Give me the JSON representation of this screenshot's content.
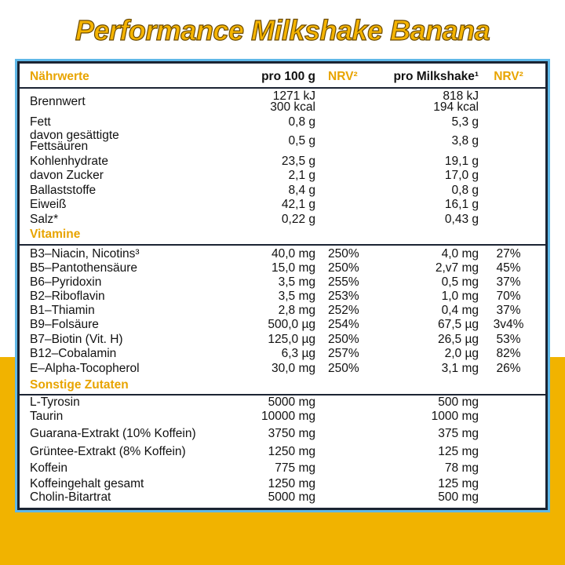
{
  "title": "Performance Milkshake Banana",
  "header": [
    "Nährwerte",
    "pro 100 g",
    "NRV²",
    "pro Milkshake¹",
    "NRV²"
  ],
  "sections": [
    {
      "rows": [
        {
          "label": "Brennwert",
          "per100": [
            "1271 kJ",
            "300 kcal"
          ],
          "perShake": [
            "818 kJ",
            "194 kcal"
          ]
        },
        {
          "label": "Fett",
          "per100": "0,8 g",
          "perShake": "5,3 g"
        },
        {
          "label": [
            "davon gesättigte",
            "Fettsäuren"
          ],
          "per100": "0,5 g",
          "perShake": "3,8 g"
        },
        {
          "label": "Kohlenhydrate",
          "per100": "23,5 g",
          "perShake": "19,1 g"
        },
        {
          "label": "davon Zucker",
          "per100": "2,1 g",
          "perShake": "17,0 g"
        },
        {
          "label": "Ballaststoffe",
          "per100": "8,4 g",
          "perShake": "0,8 g"
        },
        {
          "label": "Eiweiß",
          "per100": "42,1 g",
          "perShake": "16,1 g"
        },
        {
          "label": "Salz*",
          "per100": "0,22 g",
          "perShake": "0,43 g"
        }
      ]
    },
    {
      "title": "Vitamine",
      "rows": [
        {
          "label": "B3–Niacin, Nicotins³",
          "per100": "40,0 mg",
          "nrv100": "250%",
          "perShake": "4,0 mg",
          "nrvShake": "27%"
        },
        {
          "label": "B5–Pantothensäure",
          "per100": "15,0 mg",
          "nrv100": "250%",
          "perShake": "2,v7 mg",
          "nrvShake": "45%"
        },
        {
          "label": "B6–Pyridoxin",
          "per100": "3,5 mg",
          "nrv100": "255%",
          "perShake": "0,5 mg",
          "nrvShake": "37%"
        },
        {
          "label": "B2–Riboflavin",
          "per100": "3,5 mg",
          "nrv100": "253%",
          "perShake": "1,0 mg",
          "nrvShake": "70%"
        },
        {
          "label": "B1–Thiamin",
          "per100": "2,8 mg",
          "nrv100": "252%",
          "perShake": "0,4 mg",
          "nrvShake": "37%"
        },
        {
          "label": "B9–Folsäure",
          "per100": "500,0 µg",
          "nrv100": "254%",
          "perShake": "67,5 µg",
          "nrvShake": "3v4%"
        },
        {
          "label": "B7–Biotin (Vit. H)",
          "per100": "125,0 µg",
          "nrv100": "250%",
          "perShake": "26,5 µg",
          "nrvShake": "53%"
        },
        {
          "label": "B12–Cobalamin",
          "per100": "6,3 µg",
          "nrv100": "257%",
          "perShake": "2,0 µg",
          "nrvShake": "82%"
        },
        {
          "label": "E–Alpha-Tocopherol",
          "per100": "30,0 mg",
          "nrv100": "250%",
          "perShake": "3,1 mg",
          "nrvShake": "26%"
        }
      ]
    },
    {
      "title": "Sonstige Zutaten",
      "rows": [
        {
          "label": "L-Tyrosin",
          "per100": "5000 mg",
          "perShake": "500 mg"
        },
        {
          "label": "Taurin",
          "per100": "10000 mg",
          "perShake": "1000 mg"
        },
        {
          "label": "Guarana-Extrakt (10% Koffein)",
          "per100": "3750 mg",
          "perShake": "375 mg"
        },
        {
          "label": "Grüntee-Extrakt (8% Koffein)",
          "per100": "1250 mg",
          "perShake": "125 mg"
        },
        {
          "label": "Koffein",
          "per100": "775 mg",
          "perShake": "78 mg"
        },
        {
          "label": "Koffeingehalt gesamt",
          "per100": "1250 mg",
          "perShake": "125 mg"
        },
        {
          "label": "Cholin-Bitartrat",
          "per100": "5000 mg",
          "perShake": "500 mg"
        }
      ]
    }
  ]
}
